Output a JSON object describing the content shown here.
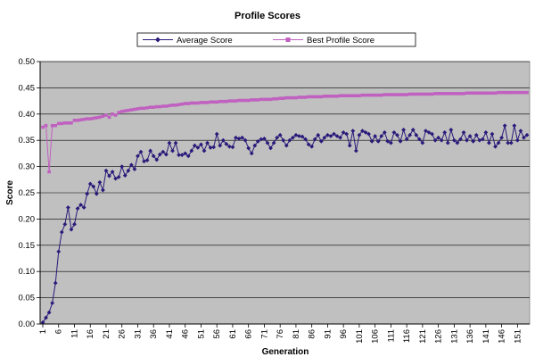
{
  "chart_data": {
    "type": "line",
    "title": "Profile Scores",
    "xlabel": "Generation",
    "ylabel": "Score",
    "ylim": [
      0,
      0.5
    ],
    "y_ticks": [
      "0.00",
      "0.05",
      "0.10",
      "0.15",
      "0.20",
      "0.25",
      "0.30",
      "0.35",
      "0.40",
      "0.45",
      "0.50"
    ],
    "x_tick_labels": [
      1,
      6,
      11,
      16,
      21,
      26,
      31,
      36,
      41,
      46,
      51,
      56,
      61,
      66,
      71,
      76,
      81,
      86,
      91,
      96,
      101,
      106,
      111,
      116,
      121,
      126,
      131,
      136,
      141,
      146,
      151
    ],
    "grid": "horizontal",
    "legend": "top",
    "plot_background": "#c0c0c0",
    "series": [
      {
        "name": "Average Score",
        "color": "#2a1a7a",
        "marker": "diamond",
        "x": [
          1,
          2,
          3,
          4,
          5,
          6,
          7,
          8,
          9,
          10,
          11,
          12,
          13,
          14,
          15,
          16,
          17,
          18,
          19,
          20,
          21,
          22,
          23,
          24,
          25,
          26,
          27,
          28,
          29,
          30,
          31,
          32,
          33,
          34,
          35,
          36,
          37,
          38,
          39,
          40,
          41,
          42,
          43,
          44,
          45,
          46,
          47,
          48,
          49,
          50,
          51,
          52,
          53,
          54,
          55,
          56,
          57,
          58,
          59,
          60,
          61,
          62,
          63,
          64,
          65,
          66,
          67,
          68,
          69,
          70,
          71,
          72,
          73,
          74,
          75,
          76,
          77,
          78,
          79,
          80,
          81,
          82,
          83,
          84,
          85,
          86,
          87,
          88,
          89,
          90,
          91,
          92,
          93,
          94,
          95,
          96,
          97,
          98,
          99,
          100,
          101,
          102,
          103,
          104,
          105,
          106,
          107,
          108,
          109,
          110,
          111,
          112,
          113,
          114,
          115,
          116,
          117,
          118,
          119,
          120,
          121,
          122,
          123,
          124,
          125,
          126,
          127,
          128,
          129,
          130,
          131,
          132,
          133,
          134,
          135,
          136,
          137,
          138,
          139,
          140,
          141,
          142,
          143,
          144,
          145,
          146,
          147,
          148,
          149,
          150,
          151,
          152,
          153,
          154
        ],
        "values": [
          0.003,
          0.012,
          0.022,
          0.04,
          0.078,
          0.138,
          0.175,
          0.19,
          0.222,
          0.18,
          0.19,
          0.22,
          0.227,
          0.222,
          0.248,
          0.267,
          0.262,
          0.248,
          0.27,
          0.255,
          0.292,
          0.282,
          0.29,
          0.277,
          0.28,
          0.3,
          0.283,
          0.292,
          0.303,
          0.295,
          0.32,
          0.328,
          0.31,
          0.312,
          0.33,
          0.32,
          0.313,
          0.323,
          0.328,
          0.323,
          0.345,
          0.33,
          0.345,
          0.322,
          0.322,
          0.325,
          0.32,
          0.33,
          0.34,
          0.336,
          0.342,
          0.33,
          0.345,
          0.336,
          0.337,
          0.362,
          0.34,
          0.35,
          0.343,
          0.338,
          0.337,
          0.355,
          0.353,
          0.355,
          0.35,
          0.335,
          0.325,
          0.34,
          0.348,
          0.352,
          0.353,
          0.345,
          0.335,
          0.345,
          0.355,
          0.36,
          0.35,
          0.34,
          0.35,
          0.355,
          0.36,
          0.358,
          0.357,
          0.352,
          0.342,
          0.338,
          0.352,
          0.36,
          0.348,
          0.355,
          0.36,
          0.358,
          0.362,
          0.358,
          0.355,
          0.365,
          0.362,
          0.34,
          0.368,
          0.33,
          0.36,
          0.368,
          0.365,
          0.362,
          0.348,
          0.358,
          0.348,
          0.358,
          0.365,
          0.348,
          0.345,
          0.365,
          0.36,
          0.348,
          0.37,
          0.352,
          0.36,
          0.37,
          0.36,
          0.352,
          0.345,
          0.368,
          0.365,
          0.362,
          0.35,
          0.355,
          0.35,
          0.365,
          0.345,
          0.37,
          0.35,
          0.345,
          0.352,
          0.365,
          0.35,
          0.358,
          0.348,
          0.36,
          0.35,
          0.352,
          0.365,
          0.345,
          0.362,
          0.338,
          0.345,
          0.355,
          0.378,
          0.345,
          0.345,
          0.378,
          0.35,
          0.368,
          0.355,
          0.36
        ],
        "note_hidden": "none"
      },
      {
        "name": "Best Profile Score",
        "color": "#c060c0",
        "marker": "square",
        "x": [
          1,
          2,
          3,
          4,
          5,
          6,
          7,
          8,
          9,
          10,
          11,
          12,
          13,
          14,
          15,
          16,
          17,
          18,
          19,
          20,
          21,
          22,
          23,
          24,
          25,
          26,
          27,
          28,
          29,
          30,
          31,
          32,
          33,
          34,
          35,
          36,
          37,
          38,
          39,
          40,
          41,
          42,
          43,
          44,
          45,
          46,
          47,
          48,
          49,
          50,
          51,
          52,
          53,
          54,
          55,
          56,
          57,
          58,
          59,
          60,
          61,
          62,
          63,
          64,
          65,
          66,
          67,
          68,
          69,
          70,
          71,
          72,
          73,
          74,
          75,
          76,
          77,
          78,
          79,
          80,
          81,
          82,
          83,
          84,
          85,
          86,
          87,
          88,
          89,
          90,
          91,
          92,
          93,
          94,
          95,
          96,
          97,
          98,
          99,
          100,
          101,
          102,
          103,
          104,
          105,
          106,
          107,
          108,
          109,
          110,
          111,
          112,
          113,
          114,
          115,
          116,
          117,
          118,
          119,
          120,
          121,
          122,
          123,
          124,
          125,
          126,
          127,
          128,
          129,
          130,
          131,
          132,
          133,
          134,
          135,
          136,
          137,
          138,
          139,
          140,
          141,
          142,
          143,
          144,
          145,
          146,
          147,
          148,
          149,
          150,
          151,
          152,
          153,
          154
        ],
        "values": [
          0.375,
          0.378,
          0.29,
          0.378,
          0.378,
          0.382,
          0.382,
          0.383,
          0.383,
          0.383,
          0.388,
          0.388,
          0.389,
          0.39,
          0.391,
          0.391,
          0.392,
          0.393,
          0.394,
          0.396,
          0.398,
          0.394,
          0.4,
          0.398,
          0.403,
          0.405,
          0.406,
          0.407,
          0.408,
          0.409,
          0.41,
          0.411,
          0.411,
          0.412,
          0.413,
          0.413,
          0.414,
          0.414,
          0.415,
          0.415,
          0.416,
          0.417,
          0.417,
          0.418,
          0.419,
          0.42,
          0.42,
          0.421,
          0.421,
          0.421,
          0.422,
          0.422,
          0.422,
          0.423,
          0.423,
          0.423,
          0.424,
          0.424,
          0.424,
          0.425,
          0.425,
          0.425,
          0.426,
          0.426,
          0.426,
          0.426,
          0.427,
          0.427,
          0.427,
          0.428,
          0.428,
          0.428,
          0.428,
          0.429,
          0.429,
          0.43,
          0.43,
          0.431,
          0.431,
          0.431,
          0.431,
          0.432,
          0.432,
          0.432,
          0.433,
          0.433,
          0.433,
          0.433,
          0.433,
          0.434,
          0.434,
          0.434,
          0.434,
          0.434,
          0.435,
          0.435,
          0.435,
          0.435,
          0.435,
          0.435,
          0.435,
          0.436,
          0.436,
          0.436,
          0.436,
          0.436,
          0.436,
          0.436,
          0.437,
          0.437,
          0.437,
          0.437,
          0.437,
          0.437,
          0.437,
          0.437,
          0.438,
          0.438,
          0.438,
          0.438,
          0.438,
          0.438,
          0.438,
          0.438,
          0.439,
          0.439,
          0.439,
          0.439,
          0.439,
          0.439,
          0.439,
          0.439,
          0.439,
          0.439,
          0.44,
          0.44,
          0.44,
          0.44,
          0.44,
          0.44,
          0.44,
          0.44,
          0.44,
          0.44,
          0.441,
          0.441,
          0.441,
          0.441,
          0.441,
          0.441,
          0.441,
          0.441,
          0.441,
          0.441
        ]
      }
    ]
  }
}
